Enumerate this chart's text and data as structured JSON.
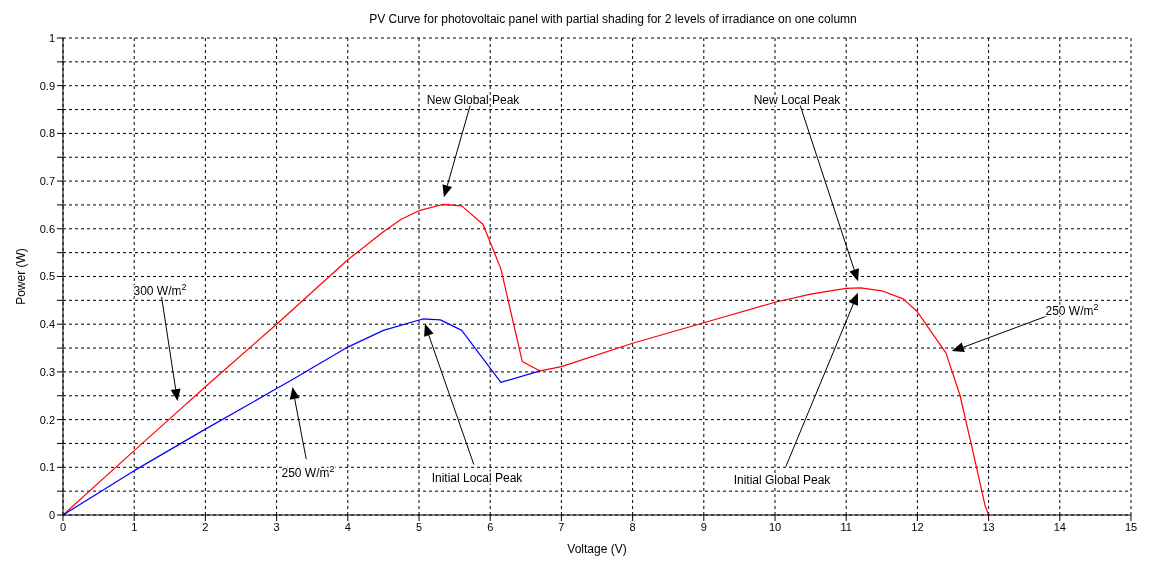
{
  "chart_data": {
    "type": "line",
    "title": "PV Curve for photovoltaic panel with partial shading for 2 levels of irradiance on one column",
    "xlabel": "Voltage (V)",
    "ylabel": "Power (W)",
    "xlim": [
      0,
      15
    ],
    "xticks": [
      0,
      1,
      2,
      3,
      4,
      5,
      6,
      7,
      8,
      9,
      10,
      11,
      12,
      13,
      14,
      15
    ],
    "ylim": [
      0,
      1
    ],
    "yticks": [
      0,
      {
        "value": 0.05,
        "label": null
      },
      0.1,
      {
        "value": 0.15,
        "label": null
      },
      0.2,
      {
        "value": 0.25,
        "label": null
      },
      0.3,
      {
        "value": 0.35,
        "label": null
      },
      0.4,
      {
        "value": 0.45,
        "label": null
      },
      0.5,
      {
        "value": 0.55,
        "label": null
      },
      0.6,
      {
        "value": 0.65,
        "label": null
      },
      0.7,
      {
        "value": 0.75,
        "label": null
      },
      0.8,
      {
        "value": 0.85,
        "label": null
      },
      0.9,
      {
        "value": 0.95,
        "label": null
      },
      1
    ],
    "grid": true,
    "marker": "none",
    "series": [
      {
        "color": "#ff0000",
        "x": [
          0,
          1,
          1.65,
          2,
          3,
          4,
          4.5,
          4.75,
          5,
          5.33,
          5.6,
          5.9,
          6.15,
          6.45,
          6.7,
          7,
          8,
          9,
          10,
          10.5,
          11,
          11.2,
          11.5,
          11.8,
          12,
          12.4,
          12.6,
          12.8,
          12.95,
          13
        ],
        "values": [
          0,
          0.135,
          0.222,
          0.269,
          0.4,
          0.535,
          0.594,
          0.62,
          0.638,
          0.651,
          0.648,
          0.609,
          0.516,
          0.322,
          0.302,
          0.311,
          0.36,
          0.403,
          0.446,
          0.463,
          0.475,
          0.476,
          0.47,
          0.453,
          0.426,
          0.34,
          0.25,
          0.12,
          0.02,
          0
        ]
      },
      {
        "color": "#0000ff",
        "x": [
          0,
          1,
          2,
          3,
          3.2,
          4,
          4.5,
          5.05,
          5.3,
          5.6,
          6.15,
          6.7
        ],
        "values": [
          0,
          0.093,
          0.18,
          0.265,
          0.282,
          0.352,
          0.387,
          0.411,
          0.409,
          0.387,
          0.278,
          0.302
        ]
      }
    ],
    "annotations": [
      "300 W/m$^{2}$",
      "250 W/m$^{2}$",
      "Initial Local Peak",
      "New Global Peak",
      "New Local Peak",
      "Initial Global Peak",
      "250 W/m$^{2}$"
    ]
  }
}
